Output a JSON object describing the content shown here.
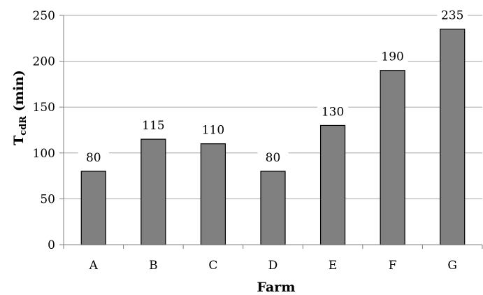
{
  "chart_data": {
    "type": "bar",
    "categories": [
      "A",
      "B",
      "C",
      "D",
      "E",
      "F",
      "G"
    ],
    "values": [
      80,
      115,
      110,
      80,
      130,
      190,
      235
    ],
    "xlabel": "Farm",
    "ylabel": {
      "main": "T",
      "sub": "cdR",
      "suffix": " (min)"
    },
    "ylim": [
      0,
      250
    ],
    "yticks": [
      0,
      50,
      100,
      150,
      200,
      250
    ],
    "grid": true,
    "legend": "none",
    "colors": {
      "bar_fill": "#808080",
      "bar_stroke": "#000000",
      "grid": "#a6a6a6",
      "axis": "#808080"
    }
  }
}
